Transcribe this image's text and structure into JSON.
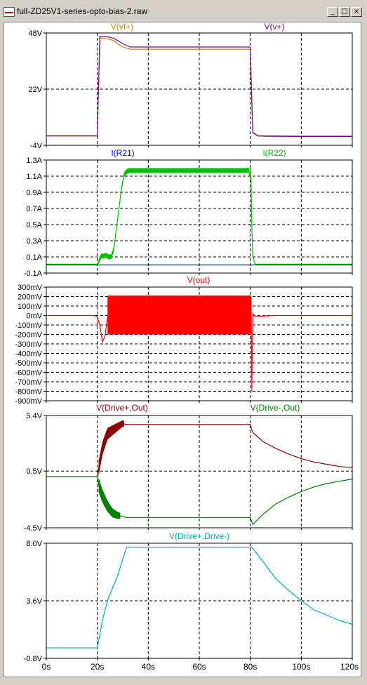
{
  "window": {
    "title": "full-ZD25V1-series-opto-bias-2.raw",
    "buttons": {
      "minimize": "_",
      "maximize": "□",
      "close": "×"
    }
  },
  "x_ticks": [
    "0s",
    "20s",
    "40s",
    "60s",
    "80s",
    "100s",
    "120s"
  ],
  "chart_data": [
    {
      "type": "line",
      "ylim": [
        -4,
        48
      ],
      "yticks": [
        "48V",
        "22V",
        "-4V"
      ],
      "ytick_values": [
        48,
        22,
        -4
      ],
      "grid": true,
      "series": [
        {
          "name": "V(vf+)",
          "color": "#b8860b",
          "x": [
            0,
            20,
            20.3,
            21,
            22,
            24,
            25,
            26.5,
            28,
            30,
            33,
            38,
            45,
            55,
            65,
            75,
            79.5,
            80,
            80.5,
            81,
            83,
            86,
            100,
            120
          ],
          "y": [
            0.5,
            0.5,
            15,
            45.8,
            45.5,
            45.3,
            45,
            44.5,
            43,
            41.5,
            40.5,
            40.5,
            40.5,
            40.5,
            40.5,
            40.5,
            40.5,
            40.3,
            20,
            2,
            0.5,
            0.4,
            0.3,
            0.3
          ]
        },
        {
          "name": "V(v+)",
          "color": "#800080",
          "x": [
            0,
            20,
            20.3,
            21,
            22,
            24,
            25,
            26.5,
            28,
            30,
            33,
            38,
            45,
            55,
            65,
            75,
            79.5,
            80,
            80.5,
            81,
            83,
            86,
            100,
            120
          ],
          "y": [
            0.3,
            0.3,
            15,
            46.5,
            46.3,
            46.2,
            46,
            45.5,
            44.5,
            43,
            41.5,
            41.5,
            41.5,
            41.5,
            41.5,
            41.5,
            41.5,
            41.3,
            20,
            1.8,
            0.3,
            0.2,
            0.1,
            0.1
          ]
        }
      ]
    },
    {
      "type": "line",
      "ylim": [
        -0.1,
        1.3
      ],
      "yticks": [
        "1.3A",
        "1.1A",
        "0.9A",
        "0.7A",
        "0.5A",
        "0.3A",
        "0.1A",
        "-0.1A"
      ],
      "ytick_values": [
        1.3,
        1.1,
        0.9,
        0.7,
        0.5,
        0.3,
        0.1,
        -0.1
      ],
      "grid": true,
      "series": [
        {
          "name": "I(R21)",
          "color": "#0000ff",
          "x": [
            0,
            20,
            120
          ],
          "y": [
            0,
            0,
            0
          ]
        },
        {
          "name": "I(R22)",
          "color": "#00c000",
          "x": [
            0,
            20,
            20.5,
            21,
            22,
            23,
            23.5,
            24.5,
            25.5,
            26.5,
            27.5,
            28.5,
            29.5,
            30.5,
            31.5,
            32,
            33,
            40,
            50,
            60,
            70,
            79,
            80,
            80.3,
            80.6,
            81,
            82,
            90,
            100,
            120
          ],
          "y": [
            0.01,
            0.01,
            0.03,
            0.1,
            0.12,
            0.1,
            0.12,
            0.1,
            0.1,
            0.2,
            0.45,
            0.7,
            0.95,
            1.12,
            1.16,
            1.17,
            1.17,
            1.17,
            1.17,
            1.17,
            1.17,
            1.17,
            1.2,
            1.05,
            0.5,
            0.1,
            0.01,
            0.01,
            0.01,
            0.01
          ],
          "band": {
            "x": [
              20.5,
              32,
              80.3
            ],
            "spread": 0.06,
            "note": "oscillation"
          }
        }
      ]
    },
    {
      "type": "line",
      "ylim": [
        -900,
        300
      ],
      "yticks": [
        "300mV",
        "200mV",
        "100mV",
        "0mV",
        "-100mV",
        "-200mV",
        "-300mV",
        "-400mV",
        "-500mV",
        "-600mV",
        "-700mV",
        "-800mV",
        "-900mV"
      ],
      "ytick_values": [
        300,
        200,
        100,
        0,
        -100,
        -200,
        -300,
        -400,
        -500,
        -600,
        -700,
        -800,
        -900
      ],
      "grid": true,
      "series": [
        {
          "name": "V(out)",
          "color": "#ff0000",
          "x": [
            0,
            19,
            20,
            21,
            22,
            23,
            24,
            30,
            40,
            50,
            60,
            70,
            80,
            80.3,
            80.6,
            81,
            82,
            90,
            120
          ],
          "y": [
            0,
            0,
            -20,
            -100,
            -280,
            -220,
            -20,
            0,
            0,
            0,
            0,
            0,
            0,
            200,
            -800,
            20,
            -10,
            0,
            0
          ],
          "band": {
            "x_start": 24,
            "x_end": 80.3,
            "upper": 210,
            "lower": -200
          }
        }
      ]
    },
    {
      "type": "line",
      "ylim": [
        -4.5,
        5.4
      ],
      "yticks": [
        "5.4V",
        "0.5V",
        "-4.5V"
      ],
      "ytick_values": [
        5.4,
        0.5,
        -4.5
      ],
      "grid": true,
      "series": [
        {
          "name": "V(Drive+,Out)",
          "color": "#8b0000",
          "x": [
            0,
            20,
            20.5,
            22,
            24,
            26,
            28,
            30,
            31.5,
            32,
            40,
            50,
            60,
            70,
            80,
            80.5,
            81,
            85,
            90,
            95,
            100,
            105,
            110,
            115,
            120
          ],
          "y": [
            0,
            0,
            0.7,
            2.5,
            3.8,
            4.1,
            4.4,
            4.7,
            4.6,
            4.6,
            4.6,
            4.6,
            4.6,
            4.6,
            4.6,
            4.2,
            3.9,
            3.1,
            2.5,
            2.0,
            1.6,
            1.3,
            1.1,
            0.9,
            0.8
          ],
          "band": {
            "x_start": 20.5,
            "x_end": 30.5,
            "spread": 1.3
          }
        },
        {
          "name": "V(Drive-,Out)",
          "color": "#008000",
          "x": [
            0,
            20,
            20.5,
            22,
            24,
            26,
            28,
            30,
            31.5,
            32,
            40,
            50,
            60,
            70,
            80,
            80.5,
            81,
            85,
            90,
            95,
            100,
            105,
            110,
            115,
            120
          ],
          "y": [
            0,
            0,
            -0.7,
            -1.7,
            -2.6,
            -3.2,
            -3.4,
            -3.5,
            -3.6,
            -3.6,
            -3.6,
            -3.6,
            -3.6,
            -3.6,
            -3.6,
            -3.9,
            -4.2,
            -3.3,
            -2.4,
            -1.8,
            -1.3,
            -0.9,
            -0.6,
            -0.4,
            -0.2
          ],
          "band": {
            "x_start": 20.5,
            "x_end": 29,
            "spread": 1.3
          }
        }
      ]
    },
    {
      "type": "line",
      "ylim": [
        -0.8,
        8.0
      ],
      "yticks": [
        "8.0V",
        "3.6V",
        "-0.8V"
      ],
      "ytick_values": [
        8.0,
        3.6,
        -0.8
      ],
      "grid": true,
      "series": [
        {
          "name": "V(Drive+,Drive-)",
          "color": "#00aabb",
          "x": [
            0,
            20,
            21,
            22,
            24,
            26,
            28,
            30,
            31.5,
            33,
            40,
            50,
            60,
            70,
            80,
            81,
            85,
            90,
            95,
            100,
            105,
            110,
            115,
            120
          ],
          "y": [
            0,
            0,
            1.0,
            2.1,
            3.6,
            4.6,
            5.5,
            6.8,
            7.7,
            7.7,
            7.7,
            7.7,
            7.7,
            7.7,
            7.7,
            7.6,
            6.6,
            5.3,
            4.4,
            3.6,
            2.9,
            2.5,
            2.1,
            1.8
          ]
        }
      ]
    }
  ]
}
